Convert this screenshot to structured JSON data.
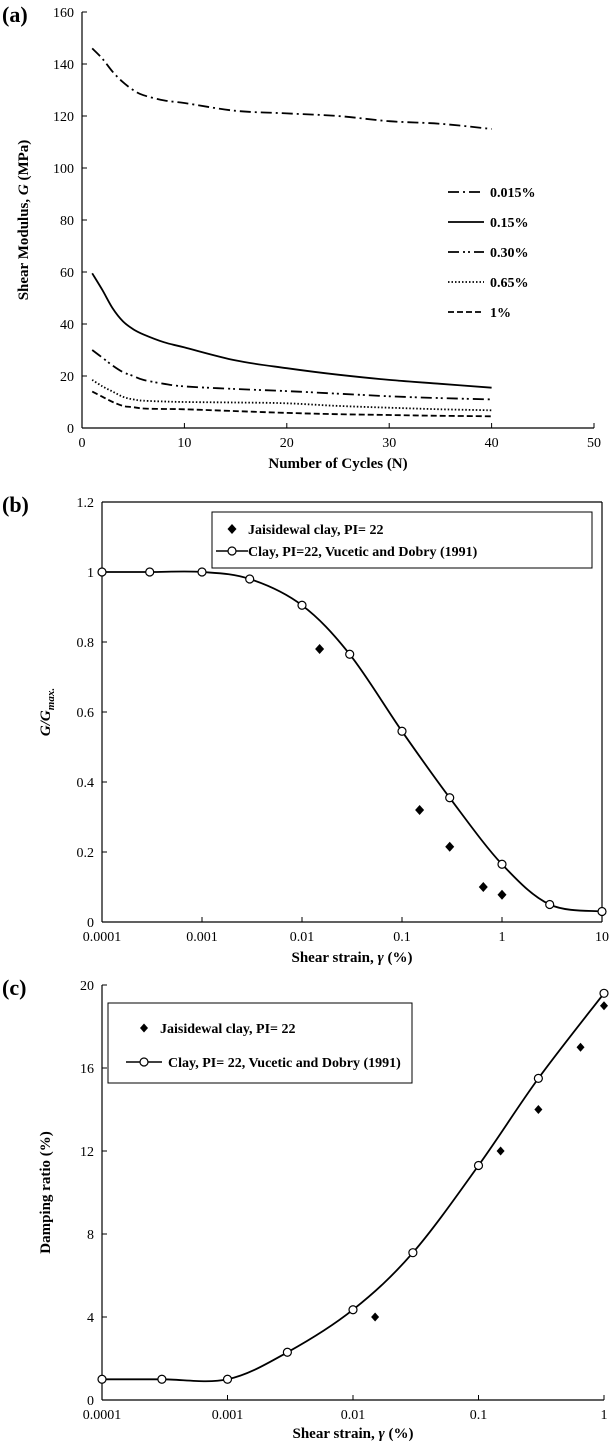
{
  "chart_data": [
    {
      "panel": "(a)",
      "type": "line",
      "xlabel": "Number of Cycles (N)",
      "ylabel_parts": [
        "Shear Modulus, ",
        "G",
        " (MPa)"
      ],
      "xlim": [
        0,
        50
      ],
      "ylim": [
        0,
        160
      ],
      "xticks": [
        0,
        10,
        20,
        30,
        40,
        50
      ],
      "yticks": [
        0,
        20,
        40,
        60,
        80,
        100,
        120,
        140,
        160
      ],
      "legend_position": "right-middle",
      "series": [
        {
          "name": "0.015%",
          "dash": "dash-dot",
          "x": [
            1,
            2,
            3,
            4,
            5,
            6,
            8,
            10,
            15,
            20,
            25,
            30,
            35,
            40
          ],
          "y": [
            146,
            142,
            137,
            133,
            130,
            128,
            126,
            125,
            122,
            121,
            120,
            118,
            117,
            115
          ]
        },
        {
          "name": "0.15%",
          "dash": "solid",
          "x": [
            1,
            2,
            3,
            4,
            5,
            6,
            8,
            10,
            15,
            20,
            25,
            30,
            35,
            40
          ],
          "y": [
            59.5,
            53,
            46,
            41,
            38,
            36,
            33,
            31,
            26,
            23,
            20.5,
            18.5,
            17,
            15.5
          ]
        },
        {
          "name": "0.30%",
          "dash": "dash-dot-dot",
          "x": [
            1,
            2,
            3,
            4,
            5,
            6,
            8,
            10,
            15,
            20,
            25,
            30,
            35,
            40
          ],
          "y": [
            30,
            27,
            24,
            21.5,
            20,
            18.5,
            17,
            16,
            15,
            14.2,
            13.2,
            12.2,
            11.5,
            11
          ]
        },
        {
          "name": "0.65%",
          "dash": "dotted",
          "x": [
            1,
            2,
            3,
            4,
            5,
            6,
            8,
            10,
            15,
            20,
            25,
            30,
            35,
            40
          ],
          "y": [
            18.5,
            16,
            14,
            12,
            11,
            10.5,
            10.2,
            10,
            9.8,
            9.5,
            8.5,
            7.8,
            7.2,
            6.8
          ]
        },
        {
          "name": "1%",
          "dash": "dashed",
          "x": [
            1,
            2,
            3,
            4,
            5,
            6,
            8,
            10,
            15,
            20,
            25,
            30,
            35,
            40
          ],
          "y": [
            14,
            12,
            10,
            8.5,
            8,
            7.5,
            7.3,
            7.2,
            6.5,
            5.8,
            5.3,
            5,
            4.7,
            4.5
          ]
        }
      ]
    },
    {
      "panel": "(b)",
      "type": "scatter",
      "xscale": "log",
      "xlabel_parts": [
        "Shear strain, ",
        "γ",
        " (%)"
      ],
      "ylabel_parts": [
        "G/G",
        "max."
      ],
      "xlim": [
        0.0001,
        10
      ],
      "ylim": [
        0,
        1.2
      ],
      "xticks": [
        0.0001,
        0.001,
        0.01,
        0.1,
        1,
        10
      ],
      "xtick_labels": [
        "0.0001",
        "0.001",
        "0.01",
        "0.1",
        "1",
        "10"
      ],
      "yticks": [
        0,
        0.2,
        0.4,
        0.6,
        0.8,
        1,
        1.2
      ],
      "ytick_labels": [
        "0",
        "0.2",
        "0.4",
        "0.6",
        "0.8",
        "1",
        "1.2"
      ],
      "legend_position": "top-right",
      "series": [
        {
          "name": "Jaisidewal clay, PI= 22",
          "marker": "diamond",
          "x": [
            0.015,
            0.15,
            0.3,
            0.65,
            1
          ],
          "y": [
            0.78,
            0.32,
            0.215,
            0.1,
            0.078
          ]
        },
        {
          "name": "Clay, PI=22, Vucetic and Dobry (1991)",
          "marker": "open-circle-line",
          "x": [
            0.0001,
            0.0003,
            0.001,
            0.003,
            0.01,
            0.03,
            0.1,
            0.3,
            1,
            3,
            10
          ],
          "y": [
            1,
            1,
            1,
            0.98,
            0.905,
            0.765,
            0.545,
            0.355,
            0.165,
            0.05,
            0.03
          ]
        }
      ]
    },
    {
      "panel": "(c)",
      "type": "scatter",
      "xscale": "log",
      "xlabel_parts": [
        "Shear strain, ",
        "γ",
        " (%)"
      ],
      "ylabel": "Damping ratio (%)",
      "xlim": [
        0.0001,
        1
      ],
      "ylim": [
        0,
        20
      ],
      "xticks": [
        0.0001,
        0.001,
        0.01,
        0.1,
        1
      ],
      "xtick_labels": [
        "0.0001",
        "0.001",
        "0.01",
        "0.1",
        "1"
      ],
      "yticks": [
        0,
        4,
        8,
        12,
        16,
        20
      ],
      "legend_position": "top-left",
      "series": [
        {
          "name": "Jaisidewal clay, PI= 22",
          "marker": "diamond",
          "x": [
            0.015,
            0.15,
            0.3,
            0.65,
            1
          ],
          "y": [
            4,
            12,
            14,
            17,
            19
          ]
        },
        {
          "name": "Clay, PI= 22, Vucetic and Dobry (1991)",
          "marker": "open-circle-line",
          "x": [
            0.0001,
            0.0003,
            0.001,
            0.003,
            0.01,
            0.03,
            0.1,
            0.3,
            1
          ],
          "y": [
            1,
            1,
            1,
            2.3,
            4.35,
            7.1,
            11.3,
            15.5,
            19.6
          ]
        }
      ]
    }
  ]
}
